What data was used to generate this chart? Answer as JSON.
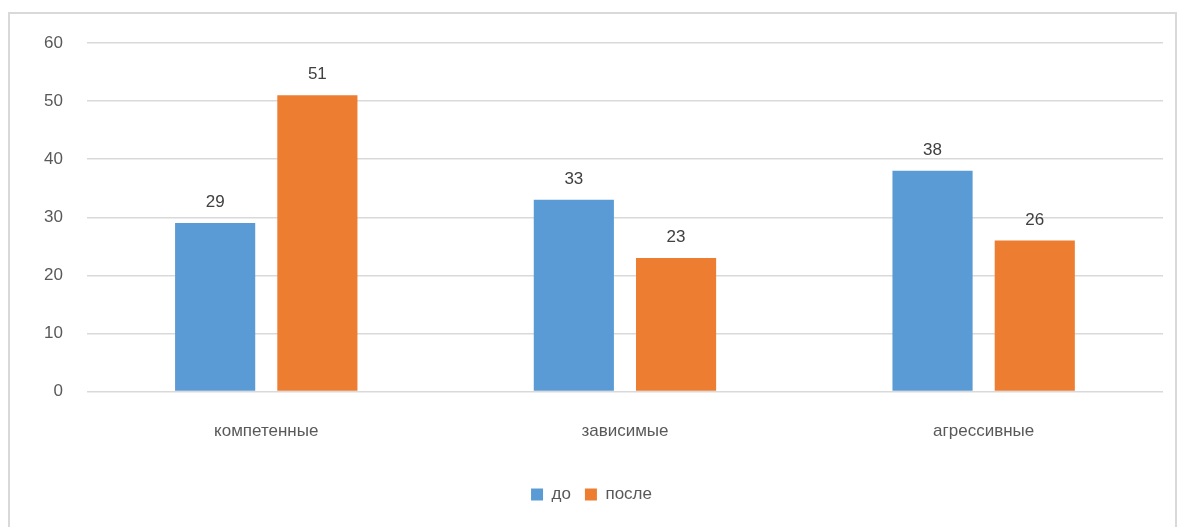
{
  "chart_data": {
    "type": "bar",
    "categories": [
      "компетенные",
      "зависимые",
      "агрессивные"
    ],
    "series": [
      {
        "name": "до",
        "color": "#5b9bd5",
        "values": [
          29,
          33,
          38
        ]
      },
      {
        "name": "после",
        "color": "#ed7d31",
        "values": [
          51,
          23,
          26
        ]
      }
    ],
    "ylim": [
      0,
      60
    ],
    "yticks": [
      0,
      10,
      20,
      30,
      40,
      50,
      60
    ],
    "grid": "y",
    "legend": "bottom",
    "data_labels": true
  }
}
